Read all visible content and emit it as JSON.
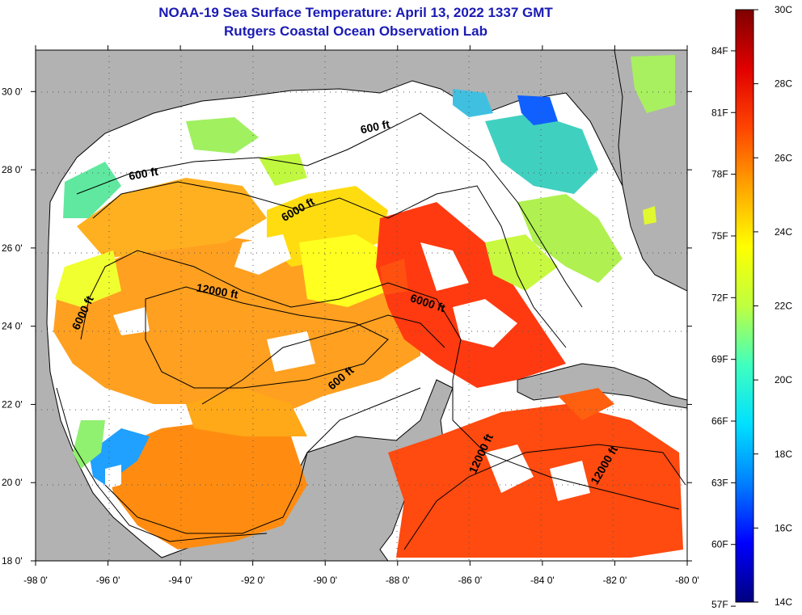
{
  "title_line1": "NOAA-19 Sea Surface Temperature:  April 13, 2022 1337 GMT",
  "title_line2": "Rutgers Coastal Ocean Observation Lab",
  "map": {
    "lon_labels": [
      "-98 0'",
      "-96 0'",
      "-94 0'",
      "-92 0'",
      "-90 0'",
      "-88 0'",
      "-86 0'",
      "-84 0'",
      "-82 0'",
      "-80 0'"
    ],
    "lat_labels": [
      "30 0'",
      "28 0'",
      "26 0'",
      "24 0'",
      "22 0'",
      "20 0'",
      "18 0'"
    ],
    "lon_values": [
      -98,
      -96,
      -94,
      -92,
      -90,
      -88,
      -86,
      -84,
      -82,
      -80
    ],
    "lat_values": [
      30,
      28,
      26,
      24,
      22,
      20,
      18
    ],
    "contour_labels": [
      {
        "text": "600 ft",
        "lon": -88.6,
        "lat": 29.0,
        "rot": -12
      },
      {
        "text": "600 ft",
        "lon": -95.0,
        "lat": 27.8,
        "rot": -10
      },
      {
        "text": "6000 ft",
        "lon": -90.7,
        "lat": 26.9,
        "rot": -30
      },
      {
        "text": "12000 ft",
        "lon": -93.0,
        "lat": 24.8,
        "rot": 10
      },
      {
        "text": "6000 ft",
        "lon": -96.6,
        "lat": 24.3,
        "rot": -65
      },
      {
        "text": "6000 ft",
        "lon": -87.2,
        "lat": 24.5,
        "rot": 18
      },
      {
        "text": "600 ft",
        "lon": -89.5,
        "lat": 22.6,
        "rot": -40
      },
      {
        "text": "12000 ft",
        "lon": -85.6,
        "lat": 20.7,
        "rot": -65
      },
      {
        "text": "12000 ft",
        "lon": -82.2,
        "lat": 20.4,
        "rot": -60
      }
    ]
  },
  "colorbar": {
    "celsius_labels": [
      "30C",
      "28C",
      "26C",
      "24C",
      "22C",
      "20C",
      "18C",
      "16C",
      "14C"
    ],
    "celsius_values": [
      30,
      28,
      26,
      24,
      22,
      20,
      18,
      16,
      14
    ],
    "fahrenheit_labels": [
      "84F",
      "81F",
      "78F",
      "75F",
      "72F",
      "69F",
      "66F",
      "63F",
      "60F",
      "57F"
    ],
    "fahrenheit_values": [
      84,
      81,
      78,
      75,
      72,
      69,
      66,
      63,
      60,
      57
    ],
    "stops": [
      "#00007f",
      "#0000ff",
      "#007fff",
      "#00e0ff",
      "#40ffbf",
      "#bfff40",
      "#ffff00",
      "#ffa500",
      "#ff4500",
      "#e10000",
      "#7f0000"
    ]
  }
}
